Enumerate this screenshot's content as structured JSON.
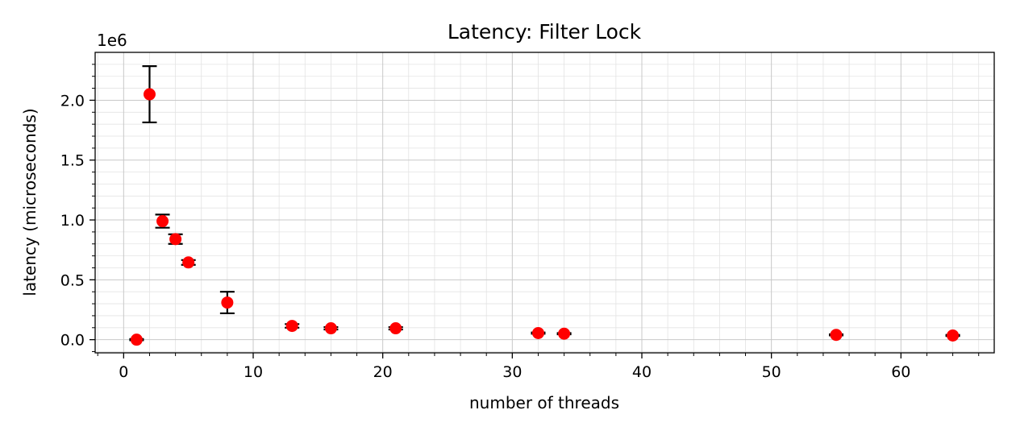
{
  "chart_data": {
    "type": "scatter",
    "title": "Latency: Filter Lock",
    "xlabel": "number of threads",
    "ylabel": "latency (microseconds)",
    "y_offset_label": "1e6",
    "xlim": [
      -2.2,
      67.2
    ],
    "ylim": [
      -0.11,
      2.4
    ],
    "y_scale": 1000000,
    "x_ticks": [
      0,
      10,
      20,
      30,
      40,
      50,
      60
    ],
    "x_tick_labels": [
      "0",
      "10",
      "20",
      "30",
      "40",
      "50",
      "60"
    ],
    "y_ticks": [
      0.0,
      0.5,
      1.0,
      1.5,
      2.0
    ],
    "y_tick_labels": [
      "0.0",
      "0.5",
      "1.0",
      "1.5",
      "2.0"
    ],
    "grid": true,
    "marker_color": "#ff0000",
    "errorbar_color": "#000000",
    "points": [
      {
        "x": 1,
        "y": 0.0,
        "err": 0.005
      },
      {
        "x": 2,
        "y": 2.05,
        "err": 0.235
      },
      {
        "x": 3,
        "y": 0.99,
        "err": 0.055
      },
      {
        "x": 4,
        "y": 0.84,
        "err": 0.04
      },
      {
        "x": 5,
        "y": 0.645,
        "err": 0.02
      },
      {
        "x": 8,
        "y": 0.31,
        "err": 0.09
      },
      {
        "x": 13,
        "y": 0.115,
        "err": 0.015
      },
      {
        "x": 16,
        "y": 0.095,
        "err": 0.01
      },
      {
        "x": 21,
        "y": 0.095,
        "err": 0.01
      },
      {
        "x": 32,
        "y": 0.055,
        "err": 0.005
      },
      {
        "x": 34,
        "y": 0.05,
        "err": 0.005
      },
      {
        "x": 55,
        "y": 0.04,
        "err": 0.005
      },
      {
        "x": 64,
        "y": 0.035,
        "err": 0.005
      }
    ]
  }
}
